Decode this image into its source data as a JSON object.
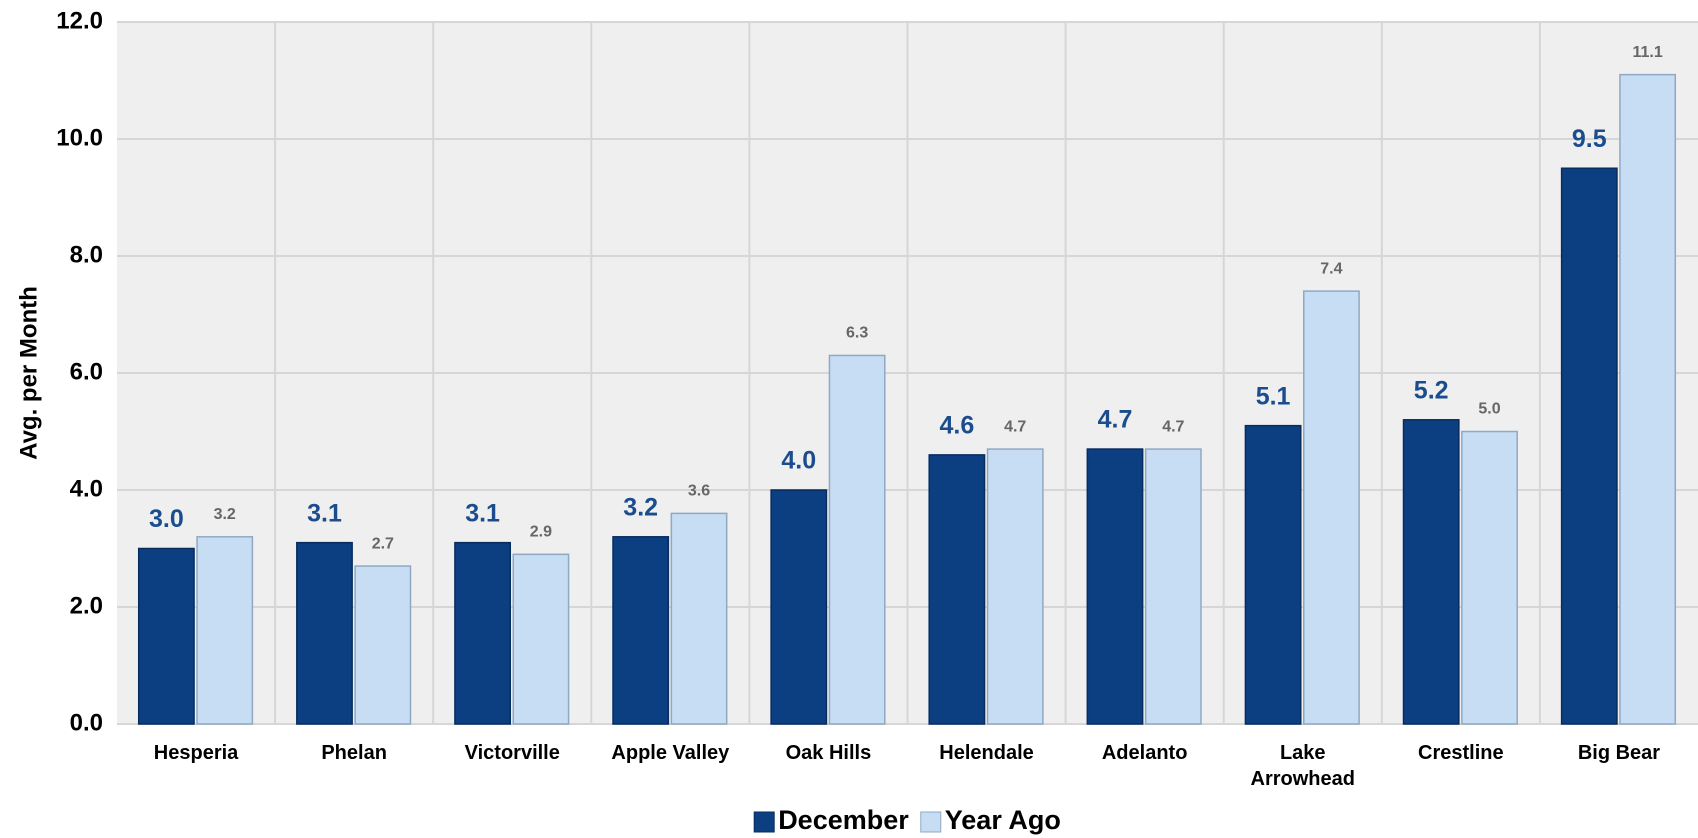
{
  "chart_data": {
    "type": "bar",
    "y_label": "Avg. per Month",
    "categories": [
      "Hesperia",
      "Phelan",
      "Victorville",
      "Apple Valley",
      "Oak Hills",
      "Helendale",
      "Adelanto",
      "Lake Arrowhead",
      "Crestline",
      "Big Bear"
    ],
    "series": [
      {
        "name": "December",
        "color": "#0b3f82",
        "values": [
          3.0,
          3.1,
          3.1,
          3.2,
          4.0,
          4.6,
          4.7,
          5.1,
          5.2,
          9.5
        ],
        "value_labels": [
          "3.0",
          "3.1",
          "3.1",
          "3.2",
          "4.0",
          "4.6",
          "4.7",
          "5.1",
          "5.2",
          "9.5"
        ]
      },
      {
        "name": "Year Ago",
        "color": "#c6ddf4",
        "values": [
          3.2,
          2.7,
          2.9,
          3.6,
          6.3,
          4.7,
          4.7,
          7.4,
          5.0,
          11.1
        ],
        "value_labels": [
          "3.2",
          "2.7",
          "2.9",
          "3.6",
          "6.3",
          "4.7",
          "4.7",
          "7.4",
          "5.0",
          "11.1"
        ]
      }
    ],
    "ylim": [
      0,
      12
    ],
    "yticks": [
      {
        "value": 0,
        "label": "0.0"
      },
      {
        "value": 2,
        "label": "2.0"
      },
      {
        "value": 4,
        "label": "4.0"
      },
      {
        "value": 6,
        "label": "6.0"
      },
      {
        "value": 8,
        "label": "8.0"
      },
      {
        "value": 10,
        "label": "10.0"
      },
      {
        "value": 12,
        "label": "12.0"
      }
    ],
    "grid": true,
    "legend": "bottom"
  }
}
